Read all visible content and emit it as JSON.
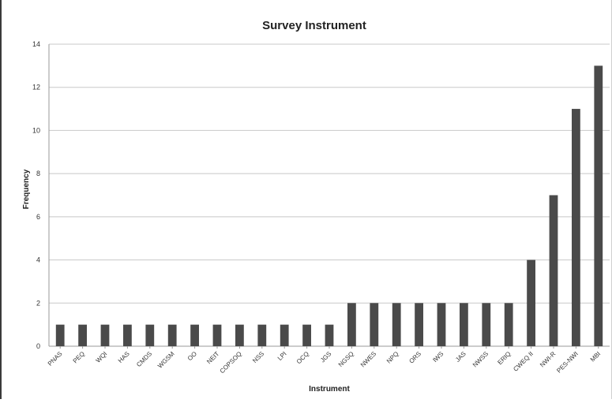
{
  "chart_data": {
    "type": "bar",
    "title": "Survey Instrument",
    "xlabel": "Instrument",
    "ylabel": "Frequency",
    "ylim": [
      0,
      14
    ],
    "yticks": [
      0,
      2,
      4,
      6,
      8,
      10,
      12,
      14
    ],
    "grid": true,
    "legend": "none",
    "bar_color": "#4a4a4a",
    "grid_color": "#c8c8c8",
    "categories": [
      "PNAS",
      "PEQ",
      "WQI",
      "HAS",
      "CMDS",
      "WGSM",
      "OO",
      "NEIT",
      "COPSOQ",
      "NSS",
      "LPI",
      "OCQ",
      "JGS",
      "NGSQ",
      "NWES",
      "NPQ",
      "ORS",
      "IWS",
      "JAS",
      "NWSS",
      "ERIQ",
      "CWEQ II",
      "NWI-R",
      "PES-NWI",
      "MBI"
    ],
    "values": [
      1,
      1,
      1,
      1,
      1,
      1,
      1,
      1,
      1,
      1,
      1,
      1,
      1,
      2,
      2,
      2,
      2,
      2,
      2,
      2,
      2,
      4,
      7,
      11,
      13
    ]
  }
}
